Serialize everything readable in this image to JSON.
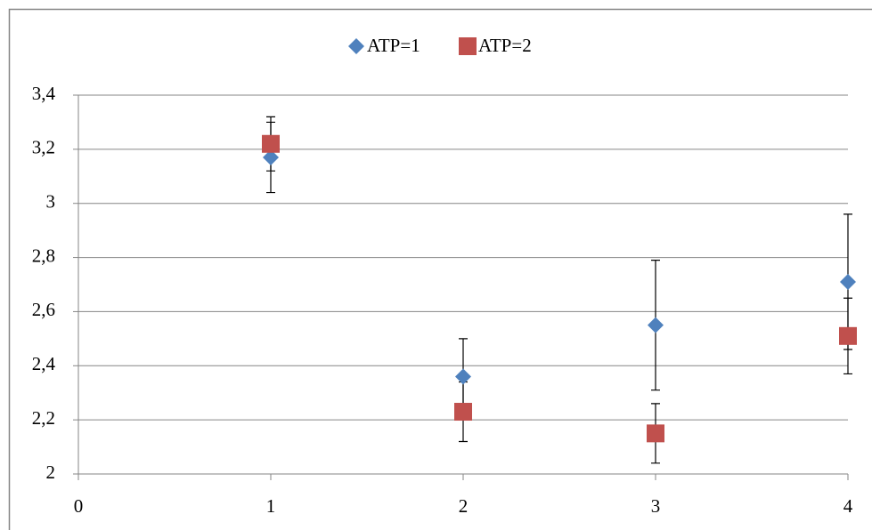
{
  "chart_data": {
    "type": "scatter",
    "x": [
      1,
      2,
      3,
      4
    ],
    "series": [
      {
        "name": "ATP=1",
        "color": "#4f81bd",
        "marker": "diamond",
        "values": [
          3.17,
          2.36,
          2.55,
          2.71
        ],
        "errors": [
          0.13,
          0.14,
          0.24,
          0.25
        ]
      },
      {
        "name": "ATP=2",
        "color": "#c0504d",
        "marker": "square",
        "values": [
          3.22,
          2.23,
          2.15,
          2.51
        ],
        "errors": [
          0.1,
          0.11,
          0.11,
          0.14
        ]
      }
    ],
    "xlim": [
      0,
      4
    ],
    "xticks": [
      0,
      1,
      2,
      3,
      4
    ],
    "ylim": [
      2,
      3.4
    ],
    "yticks": [
      2,
      {
        "value": 2.2,
        "label": "2,2"
      },
      {
        "value": 2.4,
        "label": "2,4"
      },
      {
        "value": 2.6,
        "label": "2,6"
      },
      {
        "value": 2.8,
        "label": "2,8"
      },
      3,
      {
        "value": 3.2,
        "label": "3,2"
      },
      {
        "value": 3.4,
        "label": "3,4"
      }
    ],
    "grid": true,
    "legend": "top"
  }
}
